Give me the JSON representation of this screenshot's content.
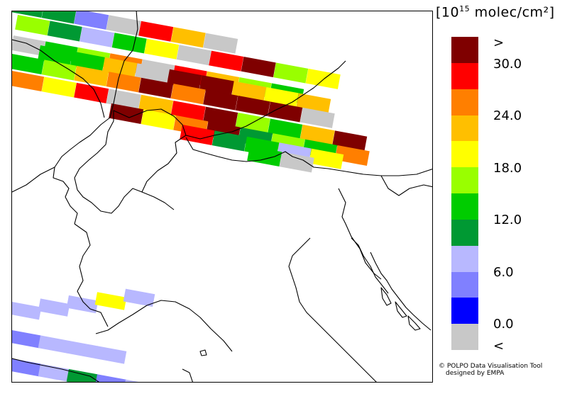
{
  "legend": {
    "title_base": "[10",
    "title_exp": "15",
    "title_units": " molec/cm²]",
    "colors": [
      "#7f0000",
      "#ff0000",
      "#ff7f00",
      "#ffbf00",
      "#ffff00",
      "#99ff00",
      "#00cc00",
      "#009933",
      "#b8b8ff",
      "#8080ff",
      "#0000ff",
      "#c8c8c8"
    ],
    "ticks": [
      ">",
      "30.0",
      "24.0",
      "18.0",
      "12.0",
      "6.0",
      "0.0",
      "<"
    ]
  },
  "credit": {
    "line1": "© POLPO Data Visualisation Tool",
    "line2": "designed by EMPA"
  },
  "map": {
    "pixel_colors_north": [
      "#009933",
      "#009933",
      "#8080ff",
      "#c8c8c8",
      "#ff0000",
      "#ffbf00",
      "#c8c8c8",
      "#99ff00",
      "#009933",
      "#b8b8ff",
      "#00cc00",
      "#ffff00",
      "#c8c8c8",
      "#ff0000",
      "#7f0000",
      "#99ff00",
      "#ffff00",
      "#c8c8c8",
      "#00cc00",
      "#99ff00",
      "#ff7f00",
      "#c8c8c8",
      "#ff0000",
      "#ffbf00",
      "#99ff00",
      "#00cc00",
      "#00cc00",
      "#00cc00",
      "#ffbf00",
      "#c8c8c8",
      "#7f0000",
      "#7f0000",
      "#ffbf00",
      "#ffff00",
      "#ffbf00",
      "#00cc00",
      "#99ff00",
      "#ffbf00",
      "#ff7f00",
      "#7f0000",
      "#ff7f00",
      "#7f0000",
      "#7f0000",
      "#7f0000",
      "#c8c8c8",
      "#ff7f00",
      "#ffff00",
      "#ff0000",
      "#c8c8c8",
      "#ffbf00",
      "#ff0000",
      "#7f0000",
      "#99ff00",
      "#00cc00",
      "#ffbf00",
      "#7f0000",
      "#7f0000",
      "#ffff00",
      "#ff7f00",
      "#7f0000",
      "#009933",
      "#99ff00",
      "#00cc00",
      "#ff7f00",
      "#ff0000",
      "#009933",
      "#00cc00",
      "#b8b8ff",
      "#ffff00",
      "#00cc00",
      "#c8c8c8",
      "#00cc00"
    ],
    "pixel_colors_south": [
      "#b8b8ff",
      "#b8b8ff",
      "#b8b8ff",
      "#ffff00",
      "#b8b8ff",
      "#8080ff",
      "#b8b8ff",
      "#b8b8ff",
      "#b8b8ff",
      "#8080ff",
      "#b8b8ff",
      "#009933",
      "#8080ff",
      "#b8b8ff"
    ]
  }
}
